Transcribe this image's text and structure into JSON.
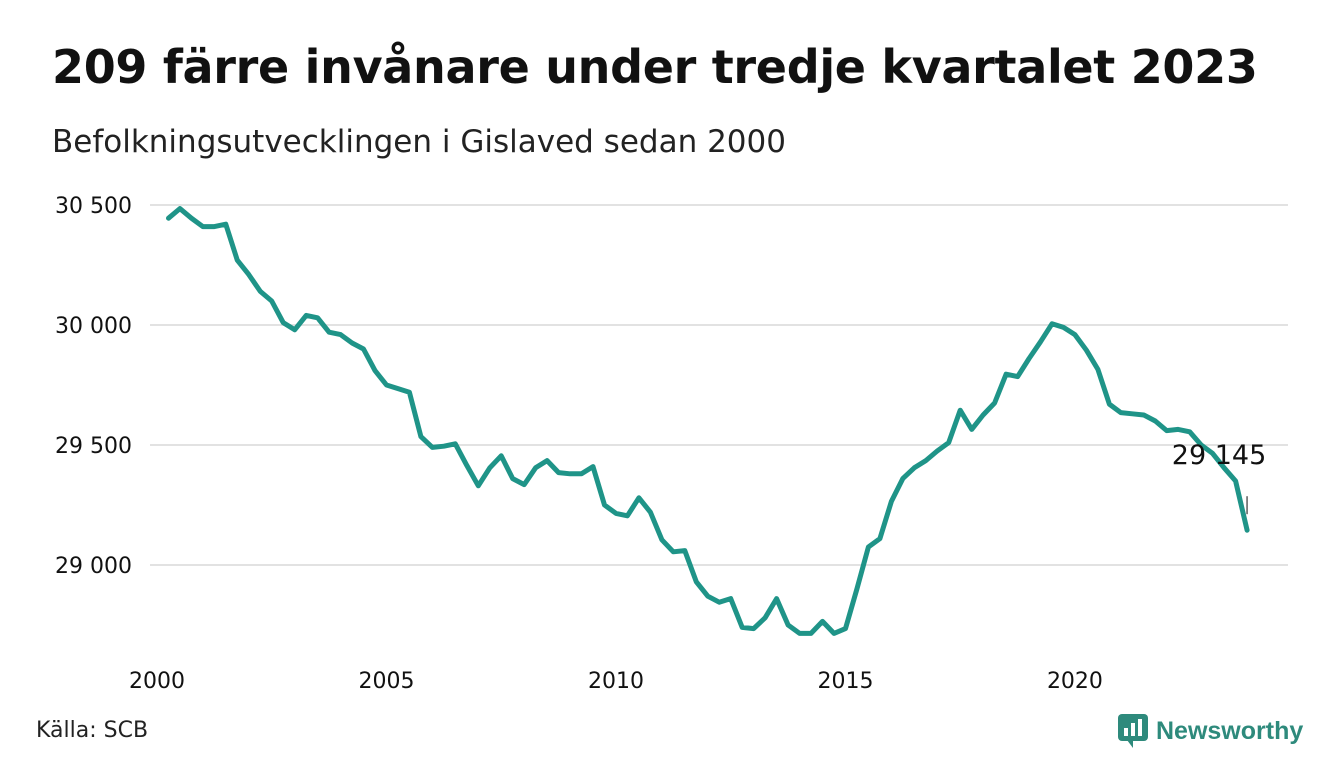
{
  "header": {
    "title": "209 färre invånare under tredje kvartalet 2023",
    "subtitle": "Befolkningsutvecklingen i Gislaved sedan 2000"
  },
  "footer": {
    "source": "Källa: SCB",
    "brand": "Newsworthy",
    "brand_icon": "bar-chart-speech-bubble-icon"
  },
  "colors": {
    "line": "#1f9488",
    "grid": "#e2e2e2",
    "text": "#111111",
    "brand": "#2e8a7c"
  },
  "chart_data": {
    "type": "line",
    "x_unit": "year",
    "ylim": [
      28600,
      30600
    ],
    "xlim": [
      2000,
      2024.25
    ],
    "yticks": [
      29000,
      29500,
      30000,
      30500
    ],
    "ytick_labels": [
      "29 000",
      "29 500",
      "30 000",
      "30 500"
    ],
    "xticks": [
      2000,
      2005,
      2010,
      2015,
      2020
    ],
    "xtick_labels": [
      "2000",
      "2005",
      "2010",
      "2015",
      "2020"
    ],
    "grid": "horizontal",
    "legend": "none",
    "annotation": {
      "x": 2023.75,
      "y": 29145,
      "label": "29 145"
    },
    "x_start": 2000.25,
    "x_step": 0.25,
    "values": [
      30445,
      30485,
      30445,
      30410,
      30410,
      30420,
      30270,
      30210,
      30140,
      30100,
      30010,
      29980,
      30040,
      30030,
      29970,
      29960,
      29925,
      29900,
      29810,
      29750,
      29735,
      29720,
      29535,
      29490,
      29495,
      29505,
      29415,
      29330,
      29405,
      29455,
      29360,
      29335,
      29405,
      29435,
      29385,
      29380,
      29380,
      29410,
      29250,
      29215,
      29205,
      29280,
      29220,
      29105,
      29055,
      29060,
      28930,
      28870,
      28845,
      28860,
      28740,
      28735,
      28780,
      28860,
      28750,
      28715,
      28715,
      28765,
      28715,
      28735,
      28900,
      29075,
      29110,
      29265,
      29360,
      29405,
      29435,
      29475,
      29510,
      29645,
      29565,
      29625,
      29675,
      29795,
      29785,
      29860,
      29930,
      30005,
      29990,
      29960,
      29895,
      29815,
      29670,
      29635,
      29630,
      29625,
      29600,
      29560,
      29565,
      29555,
      29500,
      29465,
      29405,
      29350,
      29145
    ]
  }
}
